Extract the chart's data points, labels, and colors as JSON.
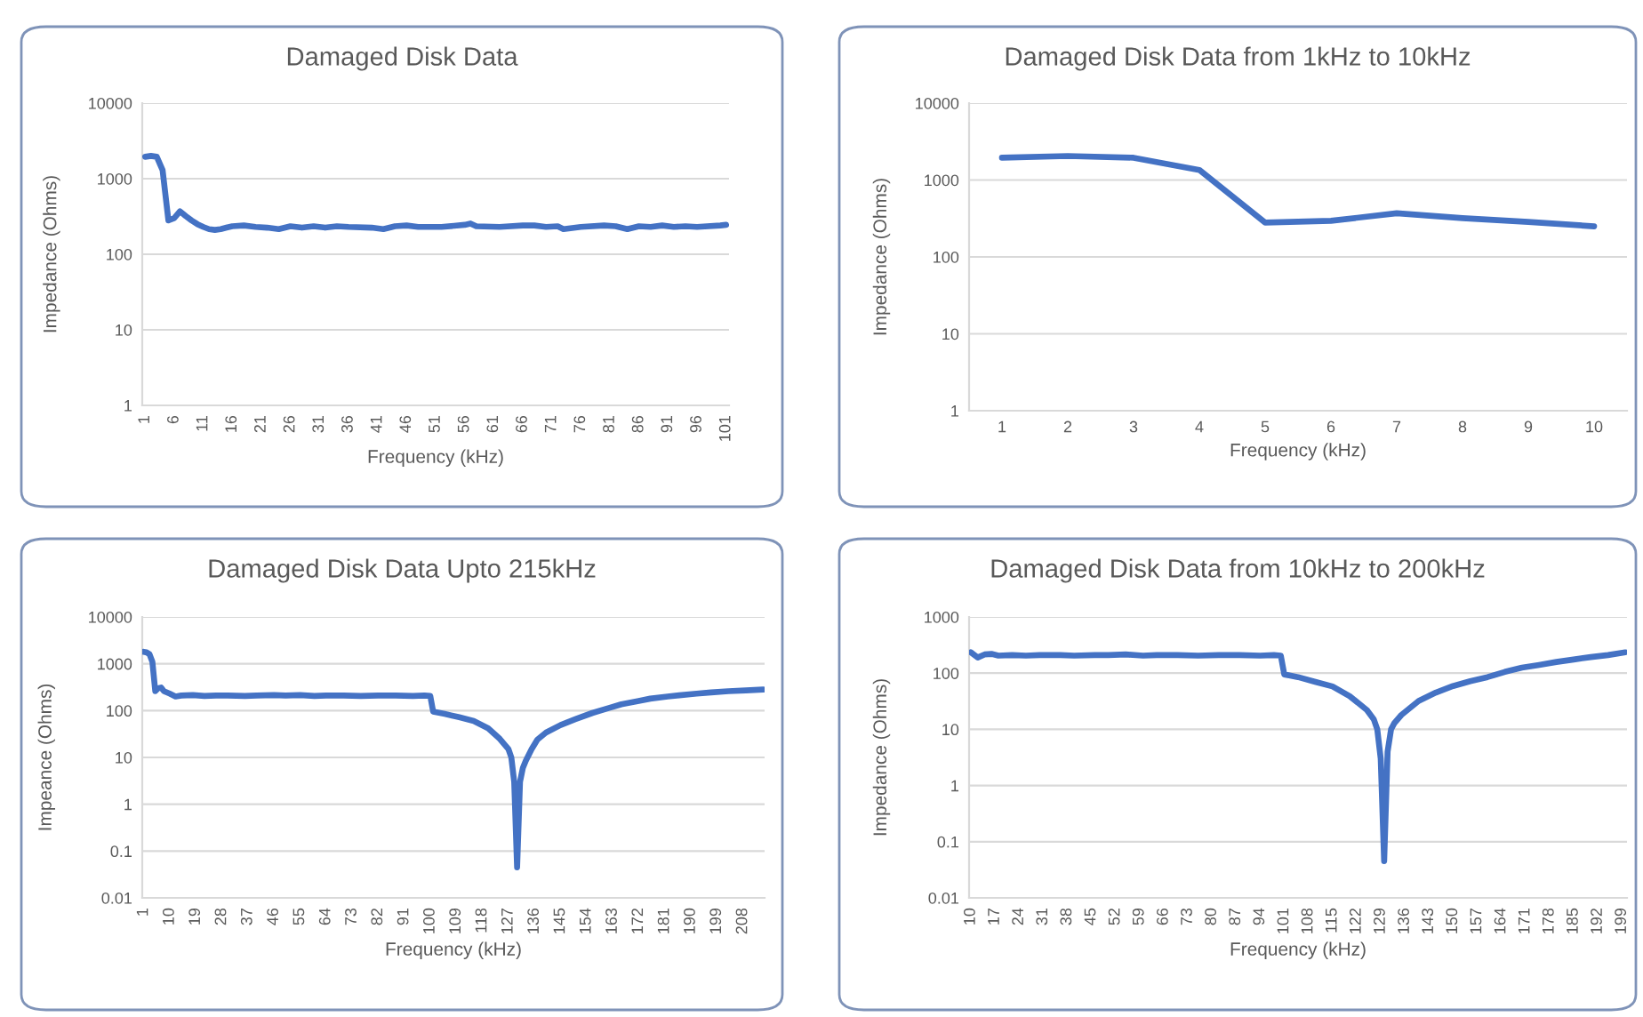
{
  "chart_data": [
    {
      "type": "line",
      "title": "Damaged Disk Data",
      "xlabel": "Frequency (kHz)",
      "ylabel": "Impedance (Ohms)",
      "log": "y",
      "grid": "y",
      "xlim": [
        0.5,
        101.5
      ],
      "xticks": [
        1,
        6,
        11,
        16,
        21,
        26,
        31,
        36,
        41,
        46,
        51,
        56,
        61,
        66,
        71,
        76,
        81,
        86,
        91,
        96,
        101
      ],
      "ylim": [
        1,
        10000
      ],
      "yticks": [
        1,
        10,
        100,
        1000,
        10000
      ],
      "series": [
        {
          "color": "#4472c4",
          "x": [
            1,
            2,
            3,
            4,
            5,
            6,
            7,
            8,
            9,
            10,
            11,
            12,
            13,
            14,
            15,
            16,
            18,
            20,
            22,
            24,
            26,
            28,
            30,
            32,
            34,
            36,
            40,
            42,
            44,
            46,
            48,
            52,
            56,
            57,
            58,
            62,
            66,
            68,
            70,
            72,
            73,
            76,
            80,
            82,
            84,
            86,
            88,
            90,
            92,
            94,
            96,
            100,
            101
          ],
          "values": [
            1950,
            2000,
            1950,
            1300,
            280,
            300,
            370,
            320,
            280,
            250,
            230,
            215,
            210,
            215,
            225,
            235,
            240,
            230,
            225,
            215,
            235,
            225,
            235,
            225,
            235,
            230,
            225,
            215,
            235,
            240,
            230,
            230,
            245,
            255,
            235,
            230,
            240,
            240,
            230,
            235,
            215,
            230,
            240,
            235,
            215,
            235,
            230,
            240,
            230,
            235,
            230,
            240,
            245
          ]
        }
      ]
    },
    {
      "type": "line",
      "title": "Damaged Disk Data from 1kHz to 10kHz",
      "xlabel": "Frequency (kHz)",
      "ylabel": "Impedance (Ohms)",
      "log": "y",
      "grid": "y",
      "xlim": [
        0.5,
        10.5
      ],
      "xticks": [
        1,
        2,
        3,
        4,
        5,
        6,
        7,
        8,
        9,
        10
      ],
      "ylim": [
        1,
        10000
      ],
      "yticks": [
        1,
        10,
        100,
        1000,
        10000
      ],
      "series": [
        {
          "color": "#4472c4",
          "x": [
            1,
            2,
            3,
            4,
            5,
            6,
            7,
            8,
            9,
            10
          ],
          "values": [
            1950,
            2050,
            1950,
            1350,
            280,
            295,
            370,
            320,
            285,
            250
          ]
        }
      ]
    },
    {
      "type": "line",
      "title": "Damaged Disk Data Upto 215kHz",
      "xlabel": "Frequency (kHz)",
      "ylabel": "Impeance (Ohms)",
      "log": "y",
      "grid": "y",
      "xlim": [
        0.5,
        215.5
      ],
      "xticks": [
        1,
        10,
        19,
        28,
        37,
        46,
        55,
        64,
        73,
        82,
        91,
        100,
        109,
        118,
        127,
        136,
        145,
        154,
        163,
        172,
        181,
        190,
        199,
        208
      ],
      "ylim": [
        0.01,
        10000
      ],
      "yticks": [
        0.01,
        0.1,
        1,
        10,
        100,
        1000,
        10000
      ],
      "series": [
        {
          "color": "#4472c4",
          "x": [
            1,
            2,
            3,
            4,
            5,
            6,
            7,
            8,
            10,
            12,
            14,
            18,
            22,
            26,
            30,
            36,
            40,
            46,
            50,
            55,
            60,
            64,
            70,
            76,
            82,
            88,
            94,
            98,
            100,
            101,
            105,
            110,
            115,
            120,
            124,
            127,
            128,
            129,
            130,
            131,
            132,
            133,
            135,
            137,
            140,
            145,
            150,
            156,
            162,
            166,
            172,
            176,
            182,
            186,
            192,
            197,
            203,
            209,
            215
          ],
          "values": [
            1800,
            1750,
            1600,
            1100,
            260,
            300,
            310,
            260,
            230,
            200,
            210,
            215,
            205,
            210,
            210,
            205,
            210,
            215,
            210,
            215,
            205,
            210,
            210,
            205,
            210,
            210,
            205,
            210,
            205,
            95,
            85,
            72,
            60,
            42,
            25,
            15,
            10,
            3,
            0.045,
            3,
            6,
            8.5,
            15,
            24,
            34,
            49,
            65,
            89,
            115,
            136,
            160,
            180,
            200,
            212,
            230,
            245,
            260,
            270,
            282
          ]
        }
      ]
    },
    {
      "type": "line",
      "title": "Damaged Disk Data from 10kHz to 200kHz",
      "xlabel": "Frequency (kHz)",
      "ylabel": "Impedance (Ohms)",
      "log": "y",
      "grid": "y",
      "xlim": [
        9.5,
        200.5
      ],
      "xticks": [
        10,
        17,
        24,
        31,
        38,
        45,
        52,
        59,
        66,
        73,
        80,
        87,
        94,
        101,
        108,
        115,
        122,
        129,
        136,
        143,
        150,
        157,
        164,
        171,
        178,
        185,
        192,
        199
      ],
      "ylim": [
        0.01,
        1000
      ],
      "yticks": [
        0.01,
        0.1,
        1,
        10,
        100,
        1000
      ],
      "series": [
        {
          "color": "#4472c4",
          "x": [
            10,
            12,
            14,
            16,
            18,
            22,
            26,
            30,
            36,
            40,
            46,
            50,
            55,
            60,
            64,
            70,
            76,
            82,
            88,
            94,
            98,
            100,
            101,
            105,
            110,
            115,
            120,
            125,
            127,
            128,
            129,
            130,
            131,
            132,
            133,
            135,
            140,
            145,
            150,
            155,
            160,
            165,
            170,
            175,
            180,
            185,
            190,
            195,
            200
          ],
          "values": [
            235,
            190,
            215,
            220,
            205,
            210,
            205,
            210,
            210,
            205,
            210,
            210,
            215,
            205,
            210,
            210,
            205,
            210,
            210,
            205,
            210,
            205,
            95,
            85,
            70,
            58,
            39,
            22,
            15,
            10,
            3,
            0.045,
            4,
            10,
            13,
            18,
            32,
            45,
            59,
            72,
            85,
            105,
            125,
            140,
            158,
            175,
            193,
            210,
            235
          ]
        }
      ]
    }
  ]
}
